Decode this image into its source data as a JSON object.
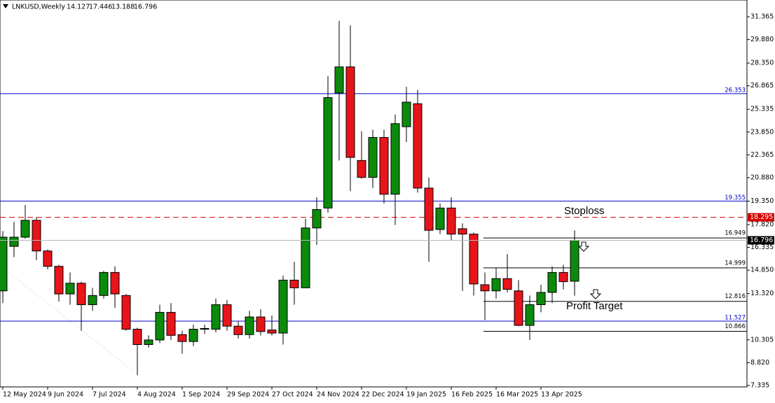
{
  "header": {
    "symbol": "LNKUSD,Weekly",
    "open": 14.127,
    "high": 17.446,
    "low": 13.188,
    "close": 16.796
  },
  "chart_data": {
    "type": "candlestick",
    "categories": [
      "12 May 2024",
      null,
      null,
      null,
      "9 Jun 2024",
      null,
      null,
      null,
      "7 Jul 2024",
      null,
      null,
      null,
      "4 Aug 2024",
      null,
      null,
      null,
      "1 Sep 2024",
      null,
      null,
      null,
      "29 Sep 2024",
      null,
      null,
      null,
      "27 Oct 2024",
      null,
      null,
      null,
      "24 Nov 2024",
      null,
      null,
      null,
      "22 Dec 2024",
      null,
      null,
      null,
      "19 Jan 2025",
      null,
      null,
      null,
      "16 Feb 2025",
      null,
      null,
      null,
      "16 Mar 2025",
      null,
      null,
      null,
      "13 Apr 2025",
      null,
      null,
      null
    ],
    "open": [
      13.5,
      16.4,
      17.0,
      18.1,
      16.1,
      15.1,
      13.3,
      14.0,
      12.6,
      13.2,
      14.7,
      13.2,
      11.0,
      10.0,
      10.3,
      12.1,
      10.65,
      10.2,
      11.0,
      11.0,
      12.6,
      11.2,
      10.65,
      11.8,
      10.95,
      10.75,
      14.2,
      13.7,
      17.6,
      18.9,
      26.4,
      28.1,
      22.0,
      20.9,
      23.5,
      19.8,
      24.2,
      25.7,
      20.2,
      17.5,
      18.9,
      17.55,
      17.2,
      13.9,
      13.5,
      14.3,
      13.5,
      11.25,
      12.6,
      13.4,
      14.7,
      14.127
    ],
    "high": [
      17.4,
      18.0,
      19.1,
      18.3,
      16.2,
      15.2,
      14.7,
      14.1,
      13.7,
      14.8,
      15.1,
      13.3,
      11.1,
      10.6,
      12.6,
      12.7,
      10.9,
      11.3,
      11.3,
      13.0,
      12.9,
      11.5,
      12.2,
      12.3,
      11.9,
      14.5,
      15.4,
      18.2,
      19.6,
      27.5,
      31.1,
      30.8,
      23.9,
      24.0,
      24.0,
      25.0,
      26.8,
      26.6,
      20.9,
      19.2,
      19.6,
      17.9,
      17.3,
      14.7,
      15.0,
      15.9,
      14.2,
      13.2,
      13.9,
      15.1,
      15.2,
      17.446
    ],
    "low": [
      12.7,
      15.7,
      16.9,
      15.5,
      14.9,
      12.8,
      12.6,
      10.9,
      12.2,
      13.0,
      12.4,
      10.9,
      8.0,
      9.8,
      10.1,
      10.3,
      9.4,
      9.9,
      10.7,
      10.8,
      10.9,
      10.4,
      10.4,
      10.6,
      10.6,
      10.0,
      12.6,
      13.7,
      16.5,
      18.6,
      22.0,
      20.0,
      20.8,
      20.2,
      19.2,
      17.8,
      23.2,
      19.9,
      15.4,
      17.2,
      16.8,
      13.5,
      13.2,
      11.6,
      13.0,
      13.4,
      11.2,
      10.3,
      12.1,
      12.7,
      13.6,
      13.188
    ],
    "close": [
      17.0,
      17.0,
      18.1,
      16.1,
      15.1,
      13.3,
      14.0,
      12.6,
      13.2,
      14.7,
      13.3,
      11.0,
      10.0,
      10.3,
      12.1,
      10.6,
      10.2,
      11.0,
      11.05,
      12.6,
      11.2,
      10.65,
      11.8,
      10.85,
      10.75,
      14.2,
      13.7,
      17.6,
      18.8,
      26.1,
      28.1,
      22.2,
      20.9,
      23.5,
      19.8,
      24.4,
      25.8,
      20.2,
      17.45,
      18.9,
      17.2,
      17.2,
      13.95,
      13.5,
      14.3,
      13.6,
      11.25,
      12.6,
      13.4,
      14.7,
      14.1,
      16.796
    ],
    "up_color": "#0b8a0b",
    "down_color": "#e8141a",
    "ylim": [
      7.24,
      32.46
    ],
    "yticks": [
      31.365,
      {
        "value": 29.88,
        "label": "29.880"
      },
      {
        "value": 28.35,
        "label": "28.350"
      },
      26.865,
      25.335,
      {
        "value": 23.85,
        "label": "23.850"
      },
      22.365,
      {
        "value": 20.88,
        "label": "20.880"
      },
      {
        "value": 19.35,
        "label": "19.350"
      },
      {
        "value": 17.82,
        "label": "17.820"
      },
      16.335,
      {
        "value": 14.85,
        "label": "14.850"
      },
      {
        "value": 13.32,
        "label": "13.320"
      },
      10.305,
      {
        "value": 8.82,
        "label": "8.820"
      },
      7.335
    ],
    "levels": [
      {
        "value": 26.353,
        "color": "#0000c8",
        "style": "solid"
      },
      {
        "value": 19.355,
        "color": "#0000c8",
        "style": "solid"
      },
      {
        "value": 18.295,
        "color": "#d40000",
        "style": "dashed"
      },
      {
        "value": 11.527,
        "color": "#0000c8",
        "style": "solid"
      }
    ],
    "targets": [
      16.949,
      14.999,
      12.816,
      10.866
    ],
    "annotations": [
      "Stoploss",
      "Profit Target"
    ]
  }
}
